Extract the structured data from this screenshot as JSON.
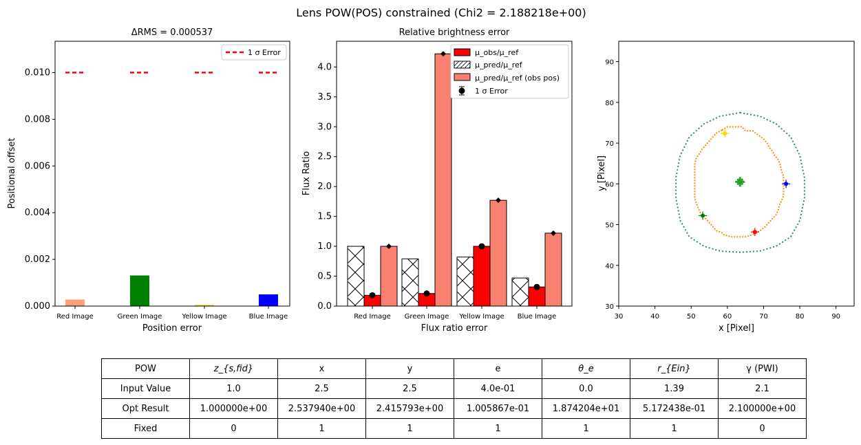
{
  "figure_title": "Lens POW(POS) constrained (Chi2 = 2.188218e+00)",
  "colors": {
    "red": "#ff0000",
    "light_salmon": "#ffa07a",
    "salmon": "#fa8072",
    "green": "#008000",
    "gold": "#ffd700",
    "blue": "#0000ff",
    "orange": "#ff8c00",
    "dark_green": "#2e8b57"
  },
  "chart_data": [
    {
      "type": "bar",
      "title": "ΔRMS = 0.000537",
      "xlabel": "Position error",
      "ylabel": "Positional offset",
      "categories": [
        "Red Image",
        "Green Image",
        "Yellow Image",
        "Blue Image"
      ],
      "values": [
        0.00028,
        0.00131,
        5e-05,
        0.0005
      ],
      "bar_colors": [
        "#ffa07a",
        "#008000",
        "#ffd700",
        "#0000ff"
      ],
      "error_line": 0.01,
      "legend": [
        "1 σ Error"
      ],
      "legend_position": "upper right",
      "ylim": [
        0,
        0.01134
      ],
      "yticks": [
        "0.000",
        "0.002",
        "0.004",
        "0.006",
        "0.008",
        "0.010"
      ]
    },
    {
      "type": "bar",
      "title": "Relative brightness error",
      "xlabel": "Flux ratio error",
      "ylabel": "Flux Ratio",
      "categories": [
        "Red Image",
        "Green Image",
        "Yellow Image",
        "Blue Image"
      ],
      "series": [
        {
          "name": "μ_obs/μ_ref",
          "values": [
            0.18,
            0.21,
            1.0,
            0.32
          ]
        },
        {
          "name": "μ_pred/μ_ref",
          "values": [
            1.0,
            0.79,
            0.82,
            0.47
          ]
        },
        {
          "name": "μ_pred/μ_ref (obs pos)",
          "values": [
            1.0,
            4.22,
            1.77,
            1.22
          ]
        }
      ],
      "error_label": "1 σ Error",
      "obs_markers": [
        0.18,
        0.21,
        1.0,
        0.32
      ],
      "pred_markers": [
        1.0,
        4.22,
        1.77,
        1.22
      ],
      "legend_position": "upper right",
      "ylim": [
        0,
        4.43
      ],
      "yticks": [
        "0.0",
        "0.5",
        "1.0",
        "1.5",
        "2.0",
        "2.5",
        "3.0",
        "3.5",
        "4.0"
      ]
    },
    {
      "type": "scatter",
      "xlabel": "x [Pixel]",
      "ylabel": "y [Pixel]",
      "xlim": [
        30,
        95
      ],
      "ylim": [
        30,
        95
      ],
      "xticks": [
        "30",
        "40",
        "50",
        "60",
        "70",
        "80",
        "90"
      ],
      "yticks": [
        "30",
        "40",
        "50",
        "60",
        "70",
        "80",
        "90"
      ],
      "caustic": [
        [
          63.5,
          77.5
        ],
        [
          69,
          76.6
        ],
        [
          73.5,
          74.7
        ],
        [
          77.5,
          71.5
        ],
        [
          80,
          67
        ],
        [
          81.3,
          61.5
        ],
        [
          81.3,
          56.5
        ],
        [
          80,
          51
        ],
        [
          77.5,
          47
        ],
        [
          73.5,
          44.7
        ],
        [
          69,
          43.5
        ],
        [
          63.5,
          43.2
        ],
        [
          58,
          43.5
        ],
        [
          53.5,
          44.7
        ],
        [
          49.5,
          47
        ],
        [
          47,
          51
        ],
        [
          45.8,
          56.5
        ],
        [
          45.8,
          61.5
        ],
        [
          47,
          67
        ],
        [
          49.5,
          71.5
        ],
        [
          53.5,
          74.7
        ],
        [
          58,
          76.6
        ]
      ],
      "critical_curve": [
        [
          58.5,
          73.2
        ],
        [
          60,
          74
        ],
        [
          64,
          74
        ],
        [
          65,
          73
        ],
        [
          67,
          73
        ],
        [
          68.5,
          72
        ],
        [
          70,
          71
        ],
        [
          71,
          70
        ],
        [
          71.5,
          69
        ],
        [
          72.5,
          68
        ],
        [
          73,
          67
        ],
        [
          74,
          66
        ],
        [
          74.5,
          65
        ],
        [
          75,
          63
        ],
        [
          75.5,
          62
        ],
        [
          75.5,
          57
        ],
        [
          75,
          56
        ],
        [
          74.5,
          55
        ],
        [
          74,
          53.5
        ],
        [
          73.5,
          52.5
        ],
        [
          72,
          51
        ],
        [
          70.5,
          49.5
        ],
        [
          69,
          48.5
        ],
        [
          67,
          47.5
        ],
        [
          65,
          47
        ],
        [
          61,
          47
        ],
        [
          59,
          47.5
        ],
        [
          58.5,
          48
        ],
        [
          57,
          48.5
        ],
        [
          56,
          49.5
        ],
        [
          55,
          50.5
        ],
        [
          54,
          51.5
        ],
        [
          52.5,
          53
        ],
        [
          51.5,
          55
        ],
        [
          51,
          56.5
        ],
        [
          51,
          65
        ],
        [
          51.5,
          66.5
        ],
        [
          52,
          67
        ],
        [
          53,
          68.5
        ],
        [
          54.5,
          70
        ],
        [
          56,
          71.5
        ],
        [
          57,
          72.5
        ]
      ],
      "lens_center": [
        63.5,
        60.5
      ],
      "images": [
        {
          "x": 67.6,
          "y": 48.2,
          "color": "#ff0000"
        },
        {
          "x": 53.2,
          "y": 52.2,
          "color": "#008000"
        },
        {
          "x": 59.3,
          "y": 72.4,
          "color": "#ffd700"
        },
        {
          "x": 76.2,
          "y": 60.0,
          "color": "#0000ff"
        }
      ]
    }
  ],
  "table": {
    "rows": [
      [
        "POW",
        "z_{s,fid}",
        "x",
        "y",
        "e",
        "θ_e",
        "r_{Ein}",
        "γ (PWI)"
      ],
      [
        "Input Value",
        "1.0",
        "2.5",
        "2.5",
        "4.0e-01",
        "0.0",
        "1.39",
        "2.1"
      ],
      [
        "Opt Result",
        "1.000000e+00",
        "2.537940e+00",
        "2.415793e+00",
        "1.005867e-01",
        "1.874204e+01",
        "5.172438e-01",
        "2.100000e+00"
      ],
      [
        "Fixed",
        "0",
        "1",
        "1",
        "1",
        "1",
        "1",
        "0"
      ]
    ]
  }
}
